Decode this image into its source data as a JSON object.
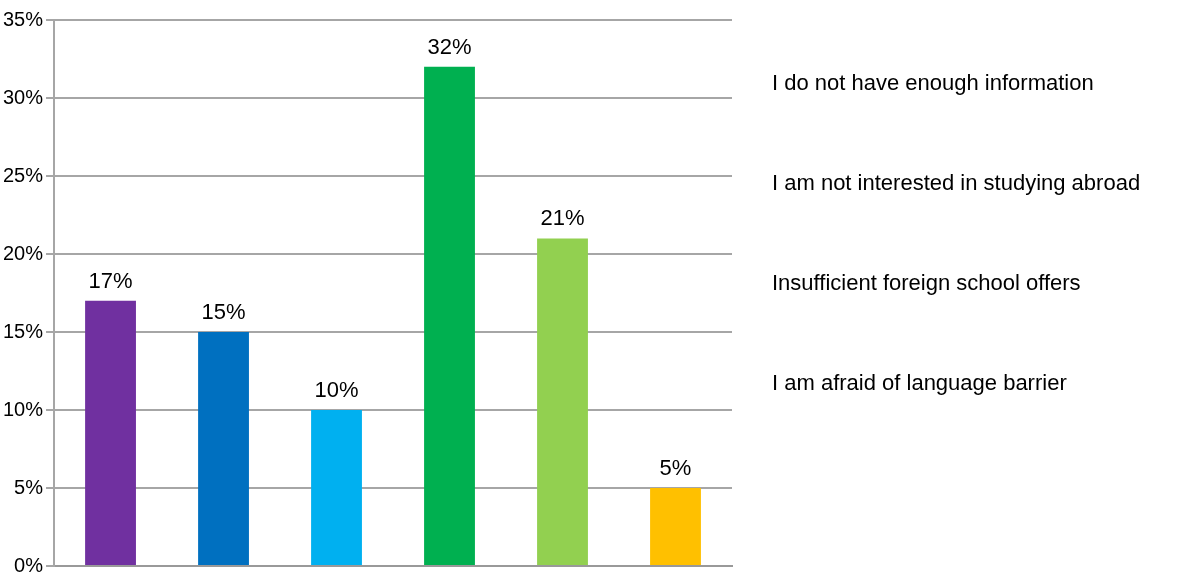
{
  "chart_data": {
    "type": "bar",
    "categories": [
      null,
      null,
      null,
      null,
      null,
      null
    ],
    "values": [
      17,
      15,
      10,
      32,
      21,
      5
    ],
    "colors": [
      "#7030a0",
      "#0070c0",
      "#00b0f0",
      "#00b050",
      "#92d050",
      "#ffc000"
    ],
    "value_labels": [
      "17%",
      "15%",
      "10%",
      "32%",
      "21%",
      "5%"
    ],
    "ylim": [
      0,
      35
    ],
    "yticks": [
      {
        "value": 0,
        "label": "0%"
      },
      {
        "value": 5,
        "label": "5%"
      },
      {
        "value": 10,
        "label": "10%"
      },
      {
        "value": 15,
        "label": "15%"
      },
      {
        "value": 20,
        "label": "20%"
      },
      {
        "value": 25,
        "label": "25%"
      },
      {
        "value": 30,
        "label": "30%"
      },
      {
        "value": 35,
        "label": "35%"
      }
    ],
    "grid": "y",
    "annotations": [
      "I do not have enough information",
      "I am not interested in studying abroad",
      "Insufficient foreign school offers",
      "I am afraid of language barrier"
    ]
  }
}
